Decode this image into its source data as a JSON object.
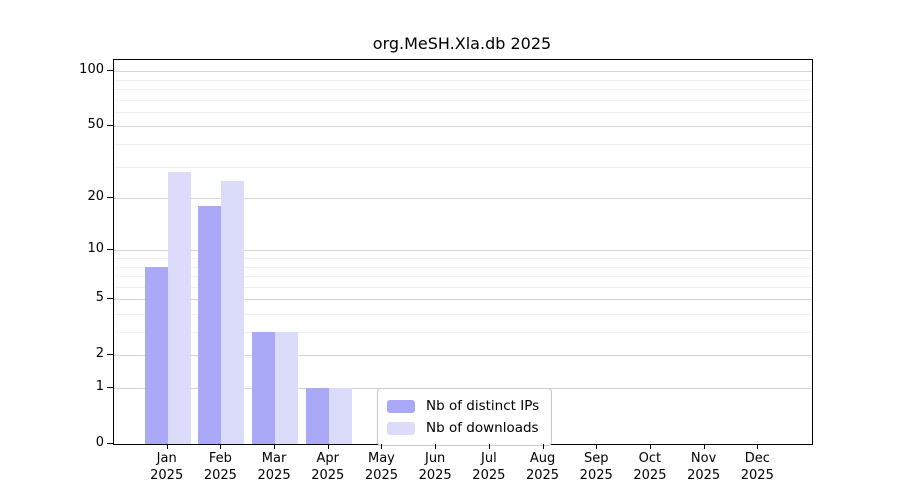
{
  "chart_data": {
    "type": "bar",
    "title": "org.MeSH.Xla.db 2025",
    "categories": [
      "Jan",
      "Feb",
      "Mar",
      "Apr",
      "May",
      "Jun",
      "Jul",
      "Aug",
      "Sep",
      "Oct",
      "Nov",
      "Dec"
    ],
    "year_label": "2025",
    "series": [
      {
        "name": "Nb of distinct IPs",
        "key": "distinct-ips",
        "color": "#a9a9f7",
        "values": [
          8,
          18,
          3,
          1,
          0,
          0,
          0,
          0,
          0,
          0,
          0,
          0
        ]
      },
      {
        "name": "Nb of downloads",
        "key": "downloads",
        "color": "#dbdcf9",
        "values": [
          28,
          25,
          3,
          1,
          0,
          0,
          0,
          0,
          0,
          0,
          0,
          0
        ]
      }
    ],
    "xlabel": "",
    "ylabel": "",
    "yscale": "log1p",
    "ylim": [
      0,
      115
    ],
    "yticks": [
      0,
      1,
      2,
      5,
      10,
      20,
      50,
      100
    ],
    "grid": true,
    "grid_major": [
      1,
      2,
      5,
      10,
      20,
      50,
      100
    ],
    "grid_minor": [
      3,
      4,
      6,
      7,
      8,
      9,
      30,
      40,
      60,
      70,
      80,
      90
    ],
    "legend_position": "inside-bottom-center"
  }
}
